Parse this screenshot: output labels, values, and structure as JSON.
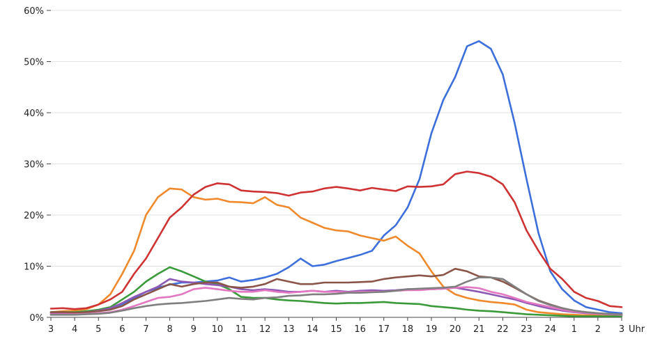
{
  "chart_data": {
    "type": "line",
    "title": "",
    "xlabel": "",
    "ylabel": "",
    "x_unit_label": "Uhr",
    "ylim": [
      0,
      60
    ],
    "grid": true,
    "legend": "none",
    "y_ticks": [
      {
        "value": 0,
        "label": "0%"
      },
      {
        "value": 10,
        "label": "10%"
      },
      {
        "value": 20,
        "label": "20%"
      },
      {
        "value": 30,
        "label": "30%"
      },
      {
        "value": 40,
        "label": "40%"
      },
      {
        "value": 50,
        "label": "50%"
      },
      {
        "value": 60,
        "label": "60%"
      }
    ],
    "x_ticks": [
      "3",
      "4",
      "5",
      "6",
      "7",
      "8",
      "9",
      "10",
      "11",
      "12",
      "13",
      "14",
      "15",
      "16",
      "17",
      "18",
      "19",
      "20",
      "21",
      "22",
      "23",
      "24",
      "1",
      "2",
      "3"
    ],
    "x": [
      3,
      3.5,
      4,
      4.5,
      5,
      5.5,
      6,
      6.5,
      7,
      7.5,
      8,
      8.5,
      9,
      9.5,
      10,
      10.5,
      11,
      11.5,
      12,
      12.5,
      13,
      13.5,
      14,
      14.5,
      15,
      15.5,
      16,
      16.5,
      17,
      17.5,
      18,
      18.5,
      19,
      19.5,
      20,
      20.5,
      21,
      21.5,
      22,
      22.5,
      23,
      23.5,
      24,
      24.5,
      25,
      25.5,
      26,
      26.5,
      27
    ],
    "series": [
      {
        "color": "#3d6fdc",
        "values": [
          0.5,
          0.6,
          0.8,
          1.0,
          1.3,
          1.8,
          2.6,
          3.8,
          5.0,
          5.8,
          6.4,
          6.8,
          6.8,
          7.0,
          7.2,
          7.8,
          7.0,
          7.3,
          7.8,
          8.5,
          9.8,
          11.5,
          10.0,
          10.3,
          11.0,
          11.6,
          12.2,
          13.0,
          16.0,
          18.0,
          21.5,
          27.0,
          36.0,
          42.5,
          47.0,
          53.0,
          54.0,
          52.5,
          47.5,
          38.0,
          27.0,
          16.5,
          9.0,
          5.5,
          3.3,
          2.0,
          1.5,
          1.0,
          0.8
        ]
      },
      {
        "color": "#f0892b",
        "values": [
          1.0,
          1.2,
          1.3,
          1.6,
          2.5,
          4.5,
          8.5,
          13.0,
          20.0,
          23.5,
          25.2,
          25.0,
          23.5,
          23.0,
          23.2,
          22.6,
          22.5,
          22.3,
          23.5,
          22.0,
          21.5,
          19.5,
          18.5,
          17.5,
          17.0,
          16.8,
          16.0,
          15.5,
          15.0,
          15.8,
          14.0,
          12.5,
          9.0,
          6.0,
          4.5,
          3.8,
          3.3,
          3.0,
          2.8,
          2.5,
          1.5,
          1.0,
          0.8,
          0.6,
          0.5,
          0.4,
          0.4,
          0.3,
          0.3
        ]
      },
      {
        "color": "#cf3232",
        "values": [
          1.7,
          1.8,
          1.6,
          1.8,
          2.5,
          3.5,
          5.0,
          8.5,
          11.5,
          15.5,
          19.5,
          21.5,
          24.0,
          25.5,
          26.2,
          26.0,
          24.8,
          24.6,
          24.5,
          24.3,
          23.8,
          24.4,
          24.6,
          25.2,
          25.5,
          25.2,
          24.8,
          25.3,
          25.0,
          24.7,
          25.6,
          25.5,
          25.6,
          26.0,
          28.0,
          28.5,
          28.2,
          27.5,
          26.0,
          22.5,
          17.0,
          13.0,
          9.5,
          7.5,
          5.0,
          3.8,
          3.2,
          2.2,
          2.0
        ]
      },
      {
        "color": "#3a9a3a",
        "values": [
          1.0,
          1.0,
          1.0,
          1.2,
          1.5,
          2.0,
          3.5,
          5.0,
          7.0,
          8.5,
          9.8,
          9.0,
          8.0,
          7.0,
          6.5,
          5.5,
          4.0,
          3.8,
          3.8,
          3.5,
          3.3,
          3.2,
          3.0,
          2.8,
          2.7,
          2.8,
          2.8,
          2.9,
          3.0,
          2.8,
          2.7,
          2.6,
          2.2,
          2.0,
          1.8,
          1.5,
          1.3,
          1.2,
          1.0,
          0.8,
          0.6,
          0.5,
          0.4,
          0.3,
          0.2,
          0.2,
          0.2,
          0.2,
          0.2
        ]
      },
      {
        "color": "#8e58b5",
        "values": [
          0.8,
          0.8,
          0.8,
          1.0,
          1.3,
          1.8,
          2.8,
          4.0,
          5.0,
          6.0,
          7.5,
          7.0,
          6.8,
          6.5,
          6.3,
          6.0,
          5.5,
          5.3,
          5.5,
          5.3,
          5.0,
          5.0,
          5.2,
          5.0,
          5.2,
          5.0,
          5.2,
          5.3,
          5.2,
          5.3,
          5.5,
          5.5,
          5.5,
          5.6,
          5.8,
          5.4,
          5.0,
          4.5,
          4.0,
          3.5,
          2.8,
          2.2,
          1.7,
          1.3,
          1.0,
          0.8,
          0.7,
          0.6,
          0.5
        ]
      },
      {
        "color": "#8a5448",
        "values": [
          1.0,
          1.0,
          0.9,
          1.0,
          1.2,
          1.5,
          2.2,
          3.5,
          4.5,
          5.5,
          6.5,
          6.0,
          6.5,
          6.8,
          6.8,
          6.0,
          5.8,
          6.0,
          6.5,
          7.5,
          7.0,
          6.5,
          6.5,
          6.8,
          6.8,
          6.8,
          6.9,
          7.0,
          7.5,
          7.8,
          8.0,
          8.2,
          8.0,
          8.3,
          9.5,
          9.0,
          8.0,
          7.8,
          7.0,
          5.8,
          4.5,
          3.3,
          2.5,
          1.8,
          1.3,
          1.0,
          0.8,
          0.6,
          0.5
        ]
      },
      {
        "color": "#e377c2",
        "values": [
          0.6,
          0.6,
          0.6,
          0.7,
          0.8,
          1.0,
          1.5,
          2.2,
          3.0,
          3.8,
          4.0,
          4.5,
          5.5,
          5.8,
          5.5,
          5.2,
          5.0,
          5.0,
          5.3,
          5.0,
          4.8,
          5.0,
          5.2,
          5.0,
          5.0,
          4.9,
          5.0,
          5.0,
          5.0,
          5.2,
          5.3,
          5.3,
          5.5,
          5.6,
          5.8,
          5.9,
          5.7,
          5.0,
          4.5,
          3.8,
          3.0,
          2.5,
          2.0,
          1.5,
          1.1,
          0.9,
          0.7,
          0.6,
          0.5
        ]
      },
      {
        "color": "#7f7f7f",
        "values": [
          0.5,
          0.5,
          0.5,
          0.6,
          0.7,
          0.9,
          1.3,
          1.8,
          2.2,
          2.5,
          2.7,
          2.8,
          3.0,
          3.2,
          3.5,
          3.8,
          3.6,
          3.5,
          3.8,
          3.9,
          4.2,
          4.3,
          4.5,
          4.5,
          4.6,
          4.8,
          4.8,
          4.9,
          5.0,
          5.2,
          5.5,
          5.6,
          5.7,
          5.8,
          6.0,
          7.0,
          7.8,
          7.8,
          7.5,
          6.0,
          4.5,
          3.2,
          2.4,
          1.8,
          1.3,
          1.0,
          0.8,
          0.7,
          0.6
        ]
      }
    ]
  }
}
